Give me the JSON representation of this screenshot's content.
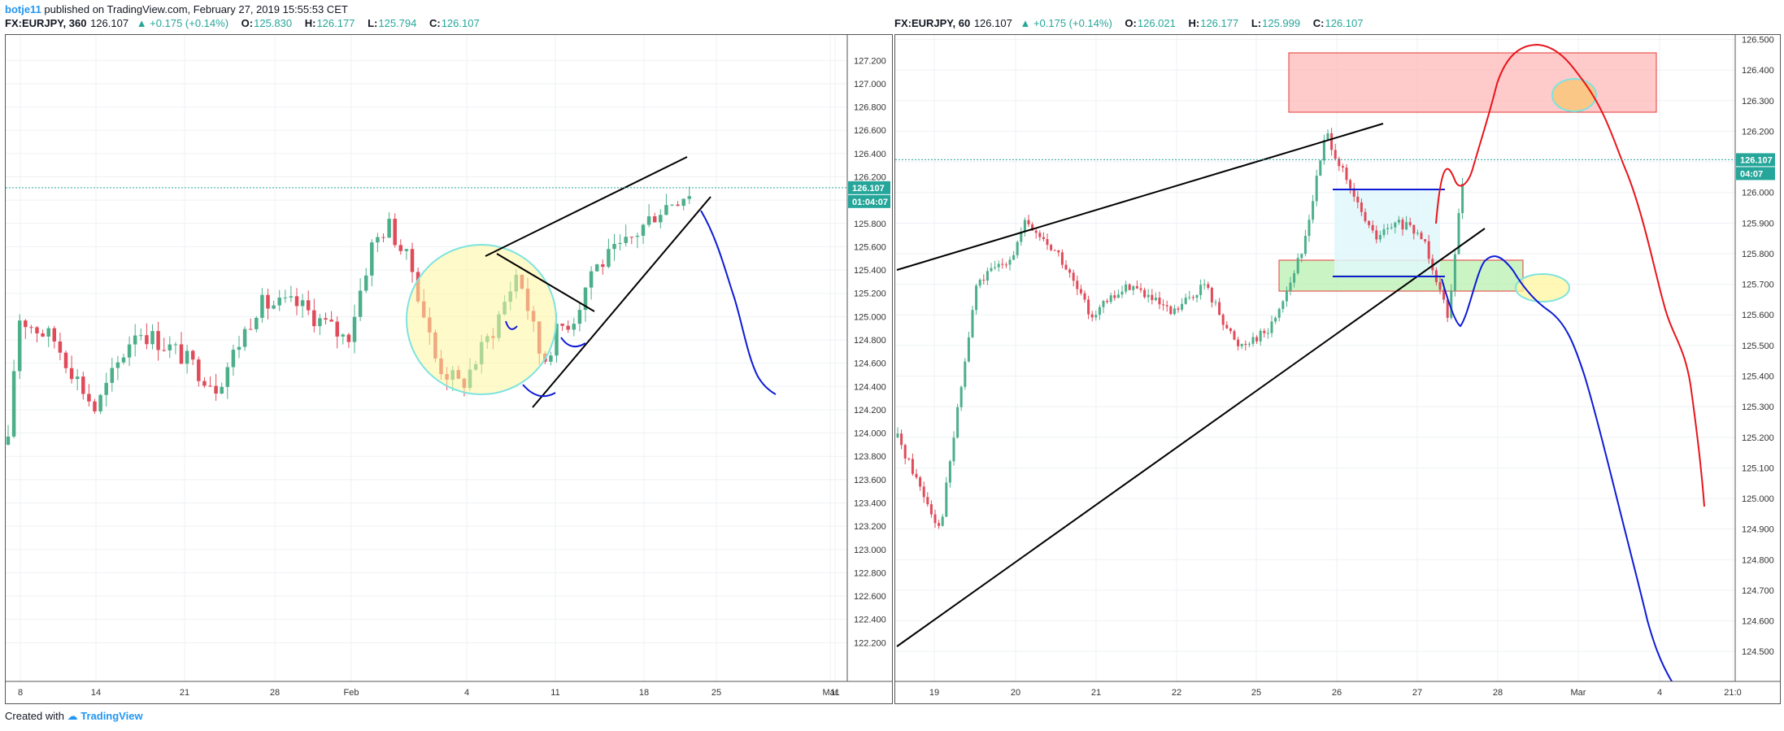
{
  "page": {
    "author": "botje11",
    "published": "published on TradingView.com, February 27, 2019 15:55:53 CET",
    "footer_prefix": "Created with",
    "footer_brand": "TradingView"
  },
  "colors": {
    "up": "#26a69a",
    "up_bar": "#4caf8a",
    "down": "#e04b5a",
    "price_line": "#26a69a",
    "grid": "#eef1f4"
  },
  "chart_data": [
    {
      "type": "candlestick",
      "symbol": "FX:EURJPY, 360",
      "last": "126.107",
      "change": "+0.175 (+0.14%)",
      "ohlc": {
        "O": "125.830",
        "H": "126.177",
        "L": "125.794",
        "C": "126.107"
      },
      "price_tag": "126.107",
      "countdown_tag": "01:04:07",
      "ylim": [
        122.0,
        127.3
      ],
      "yticks": [
        "127.200",
        "127.000",
        "126.800",
        "126.600",
        "126.400",
        "126.200",
        "126.000",
        "125.800",
        "125.600",
        "125.400",
        "125.200",
        "125.000",
        "124.800",
        "124.600",
        "124.400",
        "124.200",
        "124.000",
        "123.800",
        "123.600",
        "123.400",
        "123.200",
        "123.000",
        "122.800",
        "122.600",
        "122.400",
        "122.200"
      ],
      "xticks": [
        "8",
        "14",
        "21",
        "28",
        "Feb",
        "4",
        "11",
        "18",
        "25",
        "Mar",
        "11"
      ],
      "annotations": [
        "yellow circle pattern",
        "rising wedge trendlines",
        "blue projected path down to ~124.5"
      ]
    },
    {
      "type": "candlestick",
      "symbol": "FX:EURJPY, 60",
      "last": "126.107",
      "change": "+0.175 (+0.14%)",
      "ohlc": {
        "O": "126.021",
        "H": "126.177",
        "L": "125.999",
        "C": "126.107"
      },
      "price_tag": "126.107",
      "countdown_tag": "04:07",
      "ylim": [
        124.45,
        126.52
      ],
      "yticks": [
        "126.500",
        "126.400",
        "126.300",
        "126.200",
        "126.100",
        "126.000",
        "125.900",
        "125.800",
        "125.700",
        "125.600",
        "125.500",
        "125.400",
        "125.300",
        "125.200",
        "125.100",
        "125.000",
        "124.900",
        "124.800",
        "124.700",
        "124.600",
        "124.500"
      ],
      "xticks": [
        "19",
        "20",
        "21",
        "22",
        "25",
        "26",
        "27",
        "28",
        "Mar",
        "4",
        "21:0"
      ],
      "annotations": [
        "red resistance zone 126.28-126.48",
        "green support zone 125.71-125.82",
        "red projected path to 124.93",
        "blue projected path to 124.52"
      ]
    }
  ]
}
